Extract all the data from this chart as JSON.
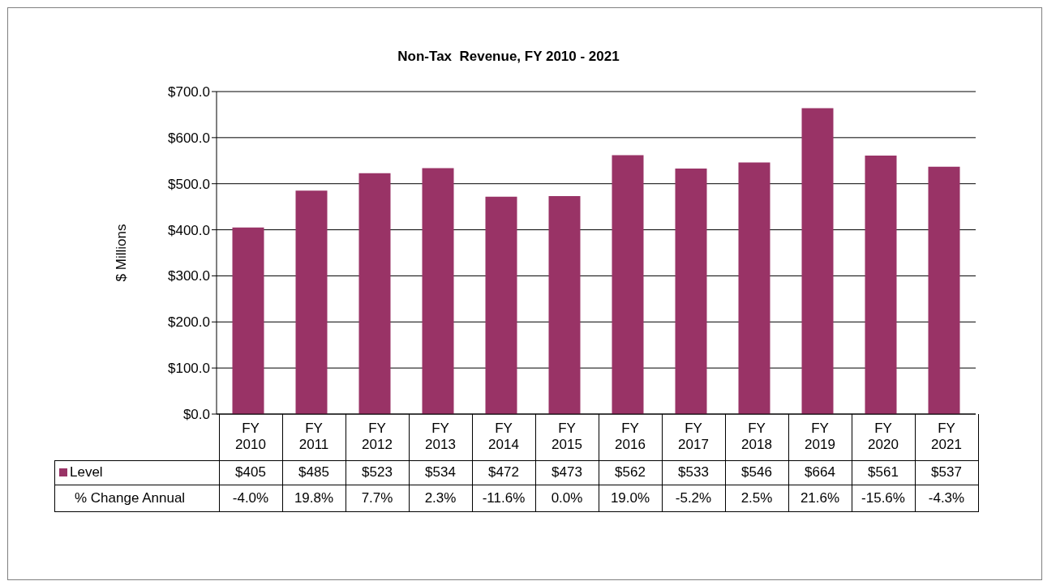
{
  "chart_data": {
    "type": "bar",
    "title": "Non-Tax  Revenue, FY 2010 - 2021",
    "ylabel": "$ Millions",
    "categories": [
      "FY 2010",
      "FY 2011",
      "FY 2012",
      "FY 2013",
      "FY 2014",
      "FY 2015",
      "FY 2016",
      "FY 2017",
      "FY 2018",
      "FY 2019",
      "FY 2020",
      "FY 2021"
    ],
    "series": [
      {
        "name": "Level",
        "color": "#993366",
        "values": [
          405,
          485,
          523,
          534,
          472,
          473,
          562,
          533,
          546,
          664,
          561,
          537
        ],
        "value_labels": [
          "$405",
          "$485",
          "$523",
          "$534",
          "$472",
          "$473",
          "$562",
          "$533",
          "$546",
          "$664",
          "$561",
          "$537"
        ]
      }
    ],
    "annotations": [
      "% Change Annual",
      "-4.0%",
      "19.8%",
      "7.7%",
      "2.3%",
      "-11.6%",
      "0.0%",
      "19.0%",
      "-5.2%",
      "2.5%",
      "21.6%",
      "-15.6%",
      "-4.3%"
    ],
    "ylim": [
      0,
      700
    ],
    "yticks": [
      {
        "value": 0,
        "label": "$0.0"
      },
      {
        "value": 100,
        "label": "$100.0"
      },
      {
        "value": 200,
        "label": "$200.0"
      },
      {
        "value": 300,
        "label": "$300.0"
      },
      {
        "value": 400,
        "label": "$400.0"
      },
      {
        "value": 500,
        "label": "$500.0"
      },
      {
        "value": 600,
        "label": "$600.0"
      },
      {
        "value": 700,
        "label": "$700.0"
      }
    ],
    "grid": "y",
    "legend": "bottom"
  }
}
